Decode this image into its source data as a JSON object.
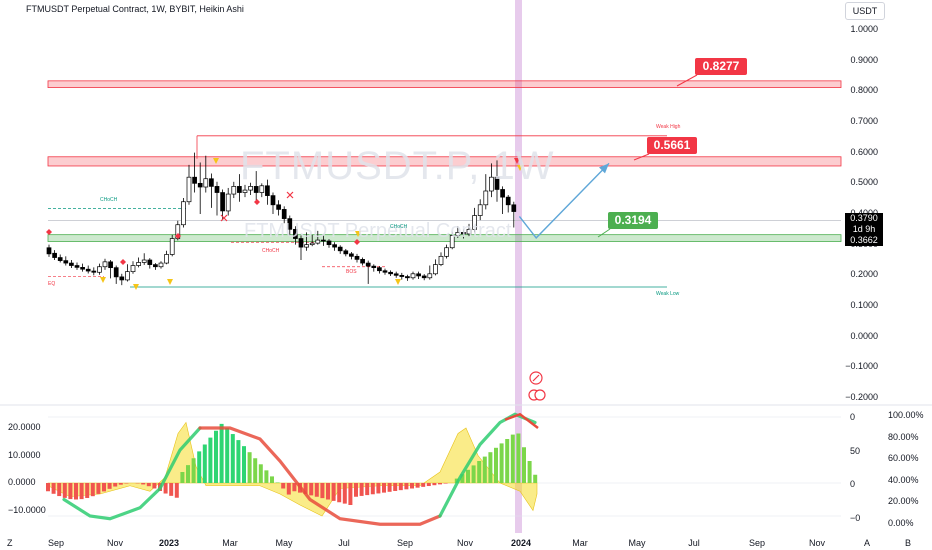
{
  "header": {
    "title": "FTMUSDT Perpetual Contract, 1W, BYBIT, Heikin Ashi",
    "currency": "USDT"
  },
  "watermark": {
    "symbol": "FTMUSDT.P, 1W",
    "name": "FTMUSDT Perpetual Contract"
  },
  "price_axis": [
    "1.0000",
    "0.9000",
    "0.8000",
    "0.7000",
    "0.6000",
    "0.5000",
    "0.4000",
    "0.3000",
    "0.2000",
    "0.1000",
    "0.0000",
    "−0.1000",
    "−0.2000"
  ],
  "osc_axis_left": [
    "20.0000",
    "10.0000",
    "0.0000",
    "−10.0000"
  ],
  "osc_axis_mid": [
    "0",
    "50",
    "0",
    "−0"
  ],
  "osc_axis_right": [
    "100.00%",
    "80.00%",
    "60.00%",
    "40.00%",
    "20.00%",
    "0.00%"
  ],
  "time_axis": [
    {
      "label": "Sep",
      "bold": false
    },
    {
      "label": "Nov",
      "bold": false
    },
    {
      "label": "2023",
      "bold": true
    },
    {
      "label": "Mar",
      "bold": false
    },
    {
      "label": "May",
      "bold": false
    },
    {
      "label": "Jul",
      "bold": false
    },
    {
      "label": "Sep",
      "bold": false
    },
    {
      "label": "Nov",
      "bold": false
    },
    {
      "label": "2024",
      "bold": true
    },
    {
      "label": "Mar",
      "bold": false
    },
    {
      "label": "May",
      "bold": false
    },
    {
      "label": "Jul",
      "bold": false
    },
    {
      "label": "Sep",
      "bold": false
    },
    {
      "label": "Nov",
      "bold": false
    }
  ],
  "corner": {
    "z": "Z",
    "a": "A",
    "b": "B"
  },
  "price_tags": {
    "target_high": "0.8277",
    "resistance": "0.5661",
    "support": "0.3194",
    "last": "0.3790",
    "countdown": "1d 9h",
    "support_level": "0.3662"
  },
  "annotations": {
    "weak_high": "Weak High",
    "weak_low": "Weak Low",
    "choch": "CHoCH",
    "bos": "BOS",
    "eq": "EQ"
  },
  "colors": {
    "bull": "#ffffff",
    "bear": "#000000",
    "red": "#f23645",
    "green": "#4caf50",
    "arrow": "#5fa7d8",
    "highlight": "#e1bee7"
  },
  "chart_data": {
    "type": "candlestick",
    "title": "FTMUSDT Perpetual Contract, 1W, BYBIT, Heikin Ashi",
    "y_axis": {
      "min": -0.2,
      "max": 1.0
    },
    "zones": [
      {
        "name": "resistance",
        "from": 0.8123,
        "to": 0.8342
      },
      {
        "name": "resistance",
        "from": 0.5566,
        "to": 0.5866
      },
      {
        "name": "support",
        "from": 0.3102,
        "to": 0.3326
      }
    ],
    "levels": {
      "weak_high": 0.655,
      "weak_low": 0.162
    },
    "candles": [
      {
        "o": 0.29,
        "c": 0.27,
        "h": 0.3,
        "l": 0.26
      },
      {
        "o": 0.272,
        "c": 0.258,
        "h": 0.282,
        "l": 0.25
      },
      {
        "o": 0.258,
        "c": 0.248,
        "h": 0.268,
        "l": 0.242
      },
      {
        "o": 0.248,
        "c": 0.24,
        "h": 0.262,
        "l": 0.232
      },
      {
        "o": 0.24,
        "c": 0.232,
        "h": 0.25,
        "l": 0.224
      },
      {
        "o": 0.232,
        "c": 0.226,
        "h": 0.242,
        "l": 0.218
      },
      {
        "o": 0.226,
        "c": 0.22,
        "h": 0.238,
        "l": 0.212
      },
      {
        "o": 0.22,
        "c": 0.214,
        "h": 0.232,
        "l": 0.206
      },
      {
        "o": 0.214,
        "c": 0.21,
        "h": 0.226,
        "l": 0.2
      },
      {
        "o": 0.21,
        "c": 0.228,
        "h": 0.238,
        "l": 0.202
      },
      {
        "o": 0.228,
        "c": 0.244,
        "h": 0.254,
        "l": 0.218
      },
      {
        "o": 0.244,
        "c": 0.225,
        "h": 0.25,
        "l": 0.19
      },
      {
        "o": 0.225,
        "c": 0.195,
        "h": 0.232,
        "l": 0.172
      },
      {
        "o": 0.195,
        "c": 0.185,
        "h": 0.205,
        "l": 0.168
      },
      {
        "o": 0.185,
        "c": 0.212,
        "h": 0.236,
        "l": 0.18
      },
      {
        "o": 0.212,
        "c": 0.232,
        "h": 0.246,
        "l": 0.205
      },
      {
        "o": 0.232,
        "c": 0.242,
        "h": 0.258,
        "l": 0.226
      },
      {
        "o": 0.242,
        "c": 0.25,
        "h": 0.272,
        "l": 0.234
      },
      {
        "o": 0.25,
        "c": 0.235,
        "h": 0.256,
        "l": 0.222
      },
      {
        "o": 0.235,
        "c": 0.228,
        "h": 0.24,
        "l": 0.218
      },
      {
        "o": 0.228,
        "c": 0.24,
        "h": 0.246,
        "l": 0.222
      },
      {
        "o": 0.24,
        "c": 0.268,
        "h": 0.28,
        "l": 0.236
      },
      {
        "o": 0.268,
        "c": 0.32,
        "h": 0.332,
        "l": 0.262
      },
      {
        "o": 0.32,
        "c": 0.365,
        "h": 0.378,
        "l": 0.314
      },
      {
        "o": 0.365,
        "c": 0.44,
        "h": 0.452,
        "l": 0.356
      },
      {
        "o": 0.44,
        "c": 0.52,
        "h": 0.56,
        "l": 0.43
      },
      {
        "o": 0.52,
        "c": 0.5,
        "h": 0.6,
        "l": 0.47
      },
      {
        "o": 0.5,
        "c": 0.488,
        "h": 0.568,
        "l": 0.4
      },
      {
        "o": 0.488,
        "c": 0.515,
        "h": 0.59,
        "l": 0.47
      },
      {
        "o": 0.515,
        "c": 0.49,
        "h": 0.532,
        "l": 0.42
      },
      {
        "o": 0.49,
        "c": 0.47,
        "h": 0.505,
        "l": 0.395
      },
      {
        "o": 0.47,
        "c": 0.41,
        "h": 0.48,
        "l": 0.38
      },
      {
        "o": 0.41,
        "c": 0.465,
        "h": 0.485,
        "l": 0.395
      },
      {
        "o": 0.465,
        "c": 0.49,
        "h": 0.505,
        "l": 0.452
      },
      {
        "o": 0.49,
        "c": 0.47,
        "h": 0.53,
        "l": 0.44
      },
      {
        "o": 0.47,
        "c": 0.478,
        "h": 0.495,
        "l": 0.455
      },
      {
        "o": 0.478,
        "c": 0.49,
        "h": 0.502,
        "l": 0.462
      },
      {
        "o": 0.49,
        "c": 0.47,
        "h": 0.54,
        "l": 0.445
      },
      {
        "o": 0.47,
        "c": 0.492,
        "h": 0.5,
        "l": 0.455
      },
      {
        "o": 0.492,
        "c": 0.46,
        "h": 0.512,
        "l": 0.43
      },
      {
        "o": 0.46,
        "c": 0.43,
        "h": 0.47,
        "l": 0.4
      },
      {
        "o": 0.43,
        "c": 0.415,
        "h": 0.445,
        "l": 0.395
      },
      {
        "o": 0.415,
        "c": 0.385,
        "h": 0.425,
        "l": 0.37
      },
      {
        "o": 0.385,
        "c": 0.35,
        "h": 0.395,
        "l": 0.33
      },
      {
        "o": 0.35,
        "c": 0.32,
        "h": 0.36,
        "l": 0.3
      },
      {
        "o": 0.32,
        "c": 0.292,
        "h": 0.33,
        "l": 0.25
      },
      {
        "o": 0.292,
        "c": 0.3,
        "h": 0.34,
        "l": 0.28
      },
      {
        "o": 0.3,
        "c": 0.305,
        "h": 0.332,
        "l": 0.295
      },
      {
        "o": 0.305,
        "c": 0.315,
        "h": 0.345,
        "l": 0.3
      },
      {
        "o": 0.315,
        "c": 0.312,
        "h": 0.33,
        "l": 0.296
      },
      {
        "o": 0.312,
        "c": 0.3,
        "h": 0.318,
        "l": 0.29
      },
      {
        "o": 0.3,
        "c": 0.292,
        "h": 0.308,
        "l": 0.28
      },
      {
        "o": 0.292,
        "c": 0.28,
        "h": 0.298,
        "l": 0.27
      },
      {
        "o": 0.28,
        "c": 0.27,
        "h": 0.286,
        "l": 0.262
      },
      {
        "o": 0.27,
        "c": 0.262,
        "h": 0.276,
        "l": 0.252
      },
      {
        "o": 0.262,
        "c": 0.252,
        "h": 0.27,
        "l": 0.242
      },
      {
        "o": 0.252,
        "c": 0.24,
        "h": 0.258,
        "l": 0.232
      },
      {
        "o": 0.24,
        "c": 0.23,
        "h": 0.248,
        "l": 0.172
      },
      {
        "o": 0.23,
        "c": 0.225,
        "h": 0.236,
        "l": 0.212
      },
      {
        "o": 0.225,
        "c": 0.215,
        "h": 0.23,
        "l": 0.206
      },
      {
        "o": 0.215,
        "c": 0.21,
        "h": 0.222,
        "l": 0.202
      },
      {
        "o": 0.21,
        "c": 0.205,
        "h": 0.216,
        "l": 0.198
      },
      {
        "o": 0.205,
        "c": 0.2,
        "h": 0.212,
        "l": 0.192
      },
      {
        "o": 0.2,
        "c": 0.196,
        "h": 0.208,
        "l": 0.186
      },
      {
        "o": 0.196,
        "c": 0.192,
        "h": 0.202,
        "l": 0.182
      },
      {
        "o": 0.192,
        "c": 0.205,
        "h": 0.212,
        "l": 0.186
      },
      {
        "o": 0.205,
        "c": 0.198,
        "h": 0.212,
        "l": 0.188
      },
      {
        "o": 0.198,
        "c": 0.192,
        "h": 0.204,
        "l": 0.184
      },
      {
        "o": 0.192,
        "c": 0.205,
        "h": 0.232,
        "l": 0.186
      },
      {
        "o": 0.205,
        "c": 0.235,
        "h": 0.252,
        "l": 0.2
      },
      {
        "o": 0.235,
        "c": 0.262,
        "h": 0.275,
        "l": 0.23
      },
      {
        "o": 0.262,
        "c": 0.29,
        "h": 0.3,
        "l": 0.255
      },
      {
        "o": 0.29,
        "c": 0.33,
        "h": 0.342,
        "l": 0.285
      },
      {
        "o": 0.33,
        "c": 0.34,
        "h": 0.36,
        "l": 0.322
      },
      {
        "o": 0.34,
        "c": 0.335,
        "h": 0.35,
        "l": 0.32
      },
      {
        "o": 0.335,
        "c": 0.35,
        "h": 0.368,
        "l": 0.328
      },
      {
        "o": 0.35,
        "c": 0.395,
        "h": 0.42,
        "l": 0.34
      },
      {
        "o": 0.395,
        "c": 0.43,
        "h": 0.448,
        "l": 0.38
      },
      {
        "o": 0.43,
        "c": 0.475,
        "h": 0.53,
        "l": 0.415
      },
      {
        "o": 0.475,
        "c": 0.52,
        "h": 0.565,
        "l": 0.455
      },
      {
        "o": 0.52,
        "c": 0.48,
        "h": 0.575,
        "l": 0.44
      },
      {
        "o": 0.48,
        "c": 0.455,
        "h": 0.49,
        "l": 0.4
      },
      {
        "o": 0.455,
        "c": 0.43,
        "h": 0.462,
        "l": 0.405
      },
      {
        "o": 0.43,
        "c": 0.408,
        "h": 0.44,
        "l": 0.356
      }
    ],
    "forecast_path": [
      {
        "t": 84,
        "p": 0.392
      },
      {
        "t": 87,
        "p": 0.322
      },
      {
        "t": 100,
        "p": 0.565
      }
    ]
  }
}
